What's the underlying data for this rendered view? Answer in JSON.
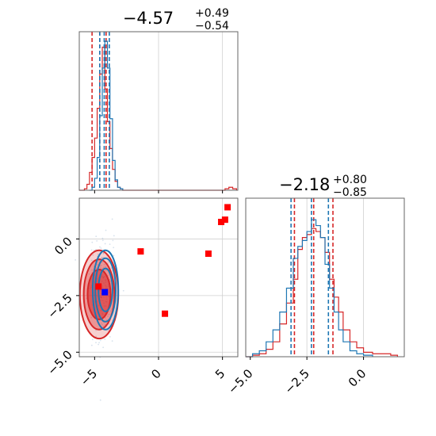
{
  "chart_data": [
    {
      "type": "histogram",
      "panel": "marginal-param-1",
      "title": {
        "median": "−4.57",
        "plus": "+0.49",
        "minus": "−0.54"
      },
      "xlim": [
        -6.2,
        6.2
      ],
      "grid": true,
      "series": [
        {
          "color": "#d62728",
          "quantiles": [
            -5.2,
            -4.6,
            -4.1
          ],
          "x": [
            -6.2,
            -5.8,
            -5.6,
            -5.4,
            -5.2,
            -5.0,
            -4.8,
            -4.6,
            -4.4,
            -4.2,
            -4.0,
            -3.8,
            -3.6,
            -3.4,
            -3.2,
            -3.0,
            -2.8,
            -2.0,
            5.2,
            5.5,
            5.8,
            6.1
          ],
          "values": [
            0.0,
            0.01,
            0.04,
            0.12,
            0.22,
            0.35,
            0.55,
            0.78,
            0.96,
            0.68,
            0.46,
            0.28,
            0.14,
            0.06,
            0.02,
            0.01,
            0.0,
            0.0,
            0.01,
            0.02,
            0.01,
            0.0
          ]
        },
        {
          "color": "#1f77b4",
          "quantiles": [
            -4.6,
            -4.25,
            -3.85
          ],
          "x": [
            -5.4,
            -5.2,
            -5.0,
            -4.8,
            -4.6,
            -4.4,
            -4.2,
            -4.0,
            -3.8,
            -3.6,
            -3.4,
            -3.2,
            -3.0,
            -2.8
          ],
          "values": [
            0.0,
            0.02,
            0.08,
            0.22,
            0.5,
            0.82,
            1.0,
            0.82,
            0.48,
            0.2,
            0.07,
            0.02,
            0.01,
            0.0
          ]
        }
      ]
    },
    {
      "type": "contour-scatter",
      "panel": "joint",
      "xlim": [
        -6.2,
        6.2
      ],
      "ylim": [
        -5.2,
        1.8
      ],
      "xticks": [
        "−5",
        "0",
        "5"
      ],
      "yticks": [
        "0.0",
        "−2.5",
        "−5.0"
      ],
      "grid": true,
      "red_points": [
        {
          "x": -1.4,
          "y": -0.55
        },
        {
          "x": 3.9,
          "y": -0.65
        },
        {
          "x": 0.5,
          "y": -3.3
        },
        {
          "x": 4.9,
          "y": 0.75
        },
        {
          "x": 5.2,
          "y": 0.85
        },
        {
          "x": 5.4,
          "y": 1.4
        },
        {
          "x": -4.7,
          "y": -2.1
        }
      ],
      "blue_points": [
        {
          "x": -4.2,
          "y": -2.35
        }
      ],
      "contours": [
        {
          "color": "#d62728",
          "cx": -4.65,
          "cy": -2.45,
          "levels": [
            [
              0.9,
              1.1
            ],
            [
              1.2,
              1.55
            ],
            [
              1.5,
              1.95
            ]
          ]
        },
        {
          "color": "#1f77b4",
          "cx": -4.15,
          "cy": -2.25,
          "levels": [
            [
              0.55,
              0.95
            ],
            [
              0.8,
              1.4
            ],
            [
              1.0,
              1.75
            ]
          ]
        }
      ]
    },
    {
      "type": "histogram",
      "panel": "marginal-param-2",
      "title": {
        "median": "−2.18",
        "plus": "+0.80",
        "minus": "−0.85"
      },
      "xlim": [
        -5.2,
        1.8
      ],
      "xticks": [
        "−5.0",
        "−2.5",
        "0.0"
      ],
      "grid": true,
      "series": [
        {
          "color": "#d62728",
          "quantiles": [
            -3.05,
            -2.2,
            -1.35
          ],
          "x": [
            -5.2,
            -4.9,
            -4.6,
            -4.3,
            -4.0,
            -3.7,
            -3.4,
            -3.1,
            -2.9,
            -2.7,
            -2.5,
            -2.3,
            -2.1,
            -1.9,
            -1.7,
            -1.5,
            -1.3,
            -1.1,
            -0.9,
            -0.6,
            -0.3,
            0.0,
            0.4,
            0.8,
            1.2,
            1.5
          ],
          "values": [
            0.0,
            0.01,
            0.02,
            0.05,
            0.1,
            0.22,
            0.36,
            0.52,
            0.72,
            0.8,
            0.82,
            0.86,
            0.84,
            0.8,
            0.7,
            0.52,
            0.4,
            0.3,
            0.18,
            0.1,
            0.06,
            0.03,
            0.02,
            0.02,
            0.01,
            0.0
          ]
        },
        {
          "color": "#1f77b4",
          "quantiles": [
            -3.2,
            -2.3,
            -1.55
          ],
          "x": [
            -5.2,
            -4.9,
            -4.6,
            -4.3,
            -4.0,
            -3.7,
            -3.4,
            -3.1,
            -2.9,
            -2.7,
            -2.5,
            -2.3,
            -2.1,
            -1.9,
            -1.7,
            -1.5,
            -1.3,
            -1.1,
            -0.9,
            -0.6,
            -0.3,
            0.0,
            0.4
          ],
          "values": [
            0.0,
            0.02,
            0.04,
            0.1,
            0.18,
            0.3,
            0.46,
            0.66,
            0.74,
            0.78,
            0.84,
            0.92,
            0.88,
            0.8,
            0.62,
            0.46,
            0.3,
            0.18,
            0.1,
            0.04,
            0.02,
            0.01,
            0.0
          ]
        }
      ]
    }
  ]
}
